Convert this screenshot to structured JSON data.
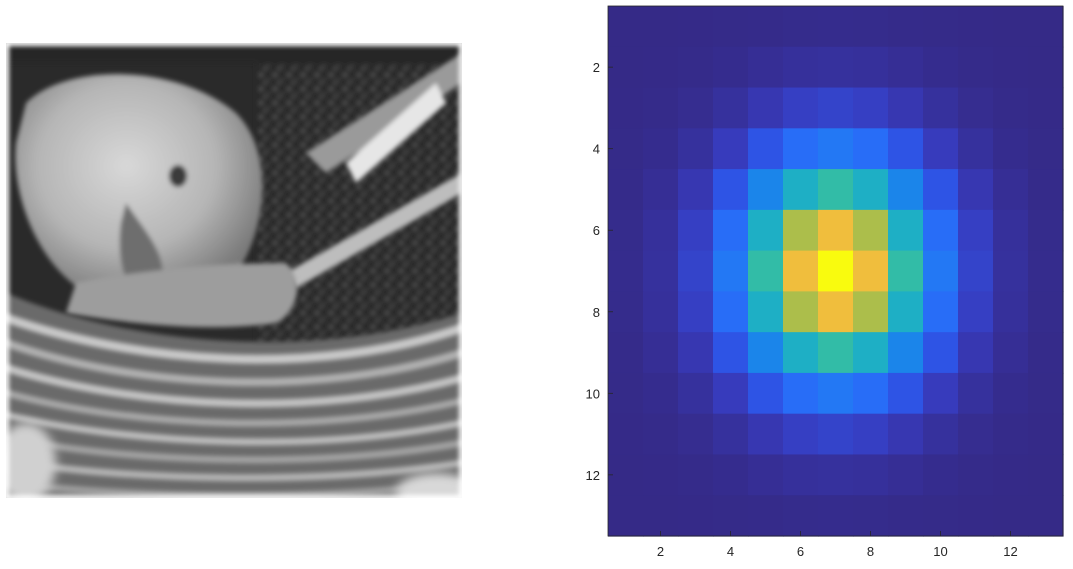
{
  "figure": {
    "left_image": {
      "description": "grayscale blurred photograph of a parrot in a woven basket",
      "type": "image"
    }
  },
  "chart_data": {
    "type": "heatmap",
    "title": "",
    "xlabel": "",
    "ylabel": "",
    "colormap": "parula",
    "xlim": [
      0.5,
      13.5
    ],
    "ylim": [
      0.5,
      13.5
    ],
    "y_reversed": true,
    "x_ticks": [
      "2",
      "4",
      "6",
      "8",
      "10",
      "12"
    ],
    "y_ticks": [
      "2",
      "4",
      "6",
      "8",
      "10",
      "12"
    ],
    "grid": false,
    "sigma": 2,
    "size": 13,
    "values_description": "13x13 Gaussian kernel, sigma 2, peak at (7,7)"
  }
}
